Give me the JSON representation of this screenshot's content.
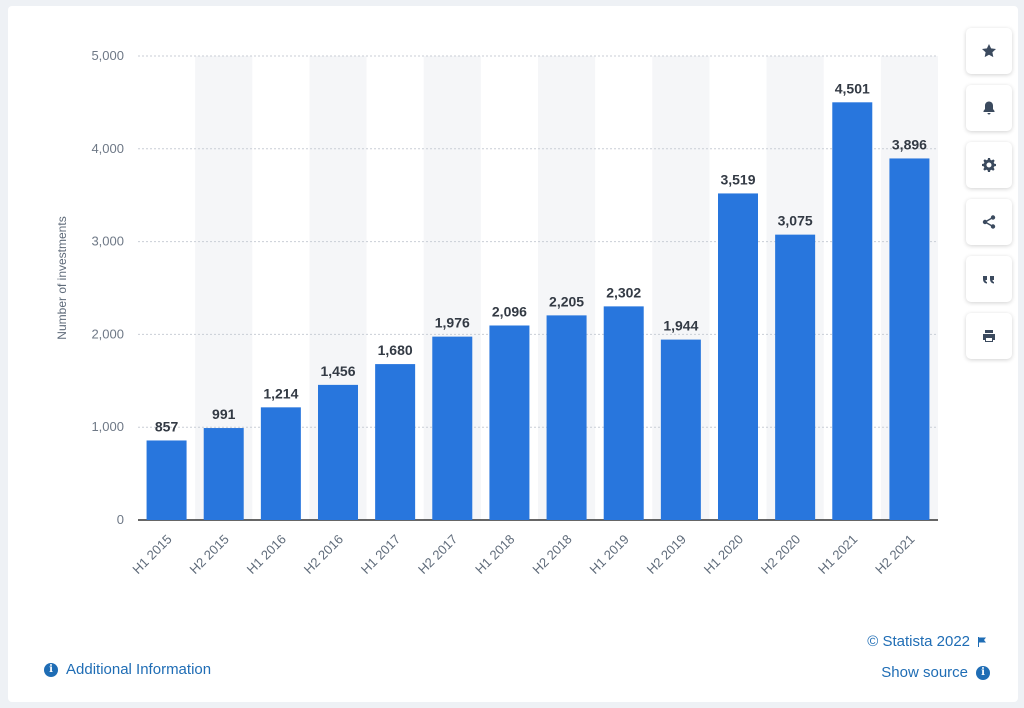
{
  "chart_data": {
    "type": "bar",
    "categories": [
      "H1 2015",
      "H2 2015",
      "H1 2016",
      "H2 2016",
      "H1 2017",
      "H2 2017",
      "H1 2018",
      "H2 2018",
      "H1 2019",
      "H2 2019",
      "H1 2020",
      "H2 2020",
      "H1 2021",
      "H2 2021"
    ],
    "values": [
      857,
      991,
      1214,
      1456,
      1680,
      1976,
      2096,
      2205,
      2302,
      1944,
      3519,
      3075,
      4501,
      3896
    ],
    "value_labels": [
      "857",
      "991",
      "1,214",
      "1,456",
      "1,680",
      "1,976",
      "2,096",
      "2,205",
      "2,302",
      "1,944",
      "3,519",
      "3,075",
      "4,501",
      "3,896"
    ],
    "ylabel": "Number of investments",
    "xlabel": "",
    "ylim": [
      0,
      5000
    ],
    "yticks": [
      0,
      1000,
      2000,
      3000,
      4000,
      5000
    ],
    "ytick_labels": [
      "0",
      "1,000",
      "2,000",
      "3,000",
      "4,000",
      "5,000"
    ],
    "bar_color": "#2876dd",
    "grid": true,
    "alternating_column_shading": true
  },
  "side_buttons": [
    {
      "icon": "star-icon"
    },
    {
      "icon": "bell-icon"
    },
    {
      "icon": "gear-icon"
    },
    {
      "icon": "share-icon"
    },
    {
      "icon": "quote-icon"
    },
    {
      "icon": "print-icon"
    }
  ],
  "footer": {
    "additional_info": "Additional Information",
    "copyright": "© Statista 2022",
    "show_source": "Show source"
  },
  "colors": {
    "accent": "#1f6db5",
    "bar": "#2876dd",
    "background": "#eef1f5"
  }
}
